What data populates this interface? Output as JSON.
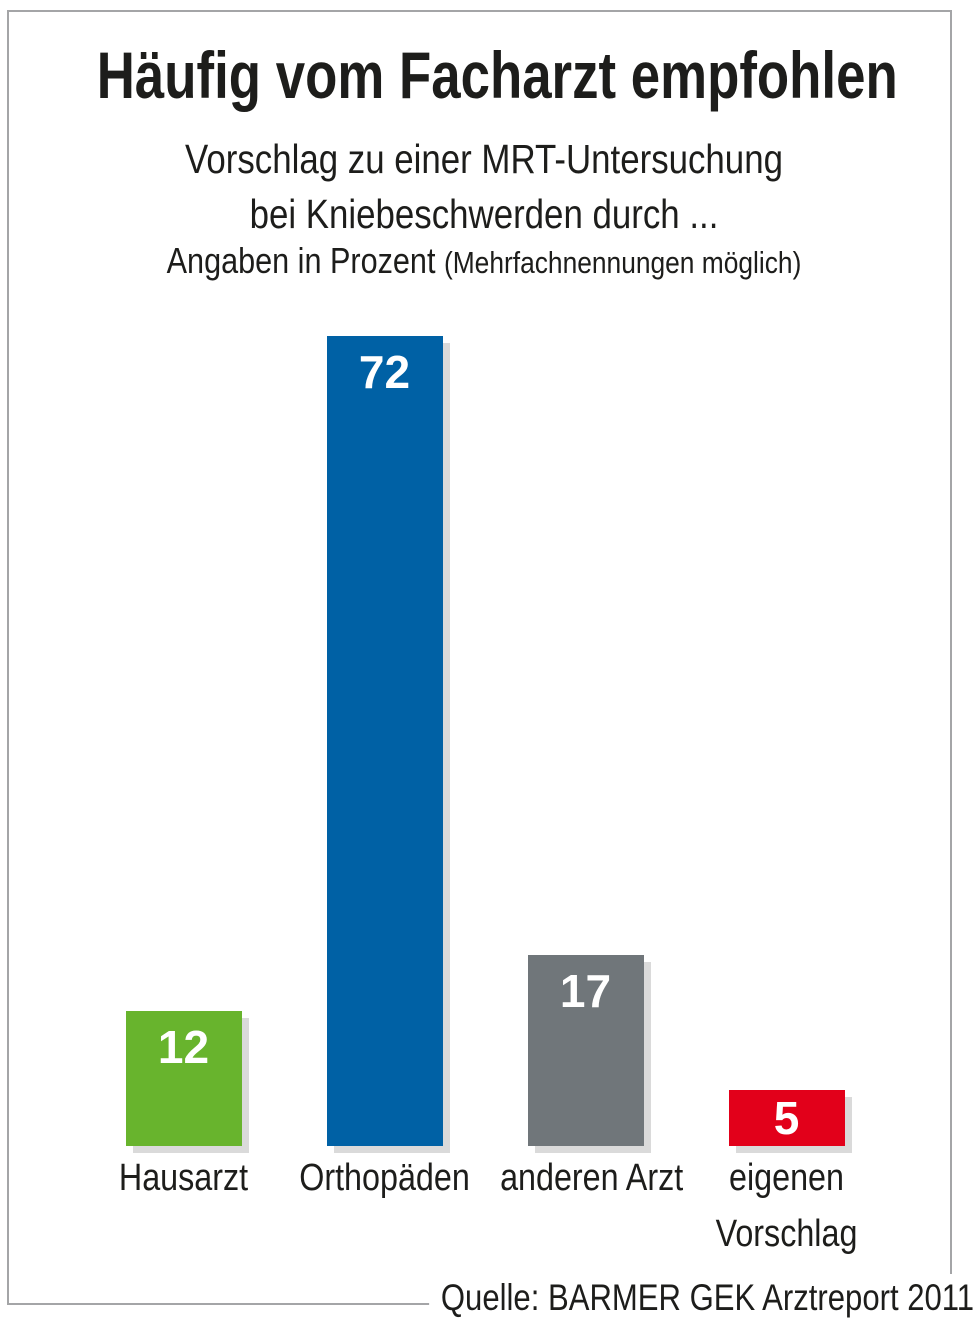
{
  "header": {
    "title": "Häufig vom Facharzt empfohlen",
    "subtitle_lines": [
      "Vorschlag zu einer MRT-Untersuchung",
      "bei Kniebeschwerden durch ..."
    ],
    "note": {
      "main": "Angaben in Prozent",
      "paren": "(Mehrfachnennungen möglich)"
    }
  },
  "chart_data": {
    "type": "bar",
    "title": "Häufig vom Facharzt empfohlen",
    "subtitle": "Vorschlag zu einer MRT-Untersuchung bei Kniebeschwerden durch ...",
    "note": "Angaben in Prozent (Mehrfachnennungen möglich)",
    "units": "Prozent",
    "categories": [
      "Hausarzt",
      "Orthopäden",
      "anderen Arzt",
      "eigenen Vorschlag"
    ],
    "category_lines": [
      [
        "Hausarzt"
      ],
      [
        "Orthopäden"
      ],
      [
        "anderen Arzt"
      ],
      [
        "eigenen",
        "Vorschlag"
      ]
    ],
    "values": [
      12,
      72,
      17,
      5
    ],
    "bar_colors": [
      "#68b42d",
      "#0061a5",
      "#70767a",
      "#e2001a"
    ],
    "value_label_color": "#ffffff",
    "ylim": [
      0,
      72
    ],
    "grid": false,
    "legend": null,
    "axes_hidden": true
  },
  "source_line": "Quelle: BARMER GEK Arztreport 2011",
  "colors": {
    "frame_border": "#a4a5a7",
    "bar_shadow": "#dadada",
    "text": "#1d1d1b"
  }
}
